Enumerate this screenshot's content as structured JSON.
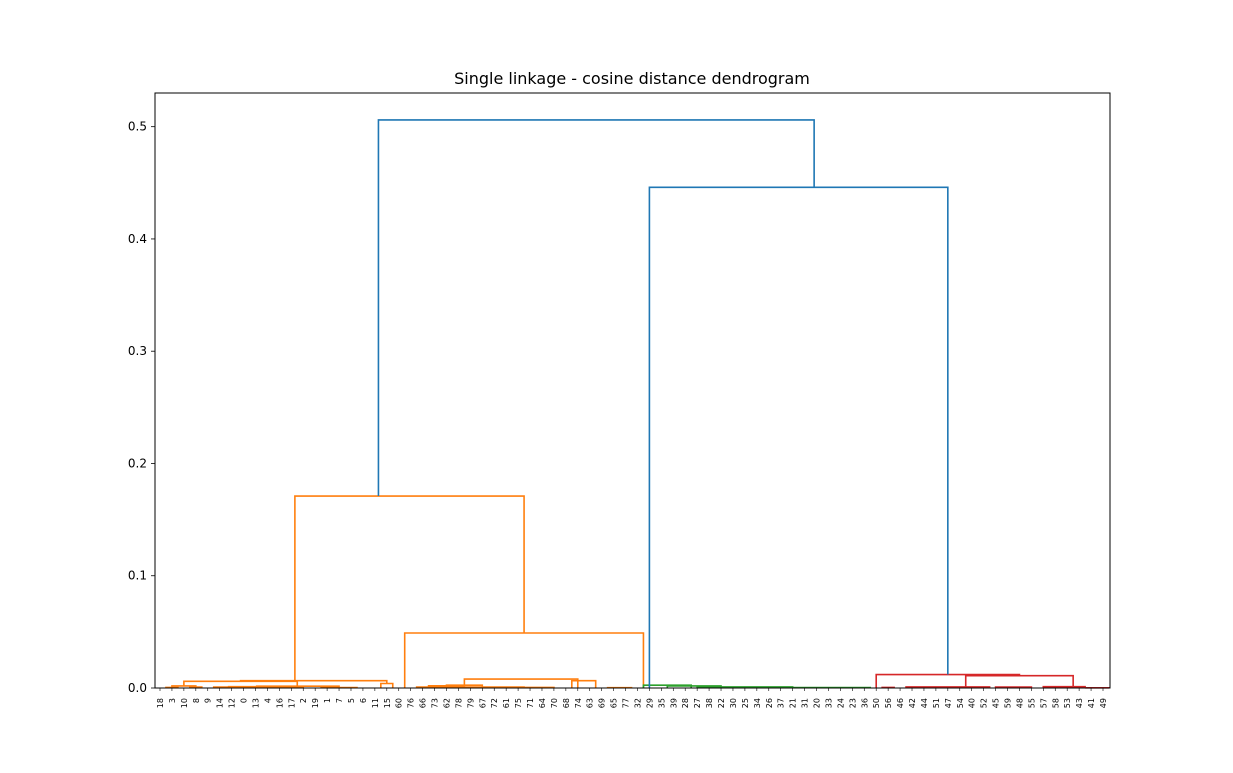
{
  "chart_data": {
    "type": "dendrogram",
    "title": "Single linkage - cosine distance dendrogram",
    "xlabel": "",
    "ylabel": "",
    "ylim": [
      0,
      0.53
    ],
    "yticks": [
      "0.0",
      "0.1",
      "0.2",
      "0.3",
      "0.4",
      "0.5"
    ],
    "ytick_values": [
      0.0,
      0.1,
      0.2,
      0.3,
      0.4,
      0.5
    ],
    "leaf_labels": [
      "18",
      "3",
      "10",
      "8",
      "9",
      "14",
      "12",
      "0",
      "13",
      "4",
      "16",
      "17",
      "2",
      "19",
      "1",
      "7",
      "5",
      "6",
      "11",
      "15",
      "60",
      "76",
      "66",
      "73",
      "62",
      "78",
      "79",
      "67",
      "72",
      "61",
      "75",
      "71",
      "64",
      "70",
      "68",
      "74",
      "63",
      "69",
      "65",
      "77",
      "32",
      "29",
      "35",
      "39",
      "28",
      "27",
      "38",
      "22",
      "30",
      "25",
      "34",
      "26",
      "37",
      "21",
      "31",
      "20",
      "33",
      "24",
      "23",
      "36",
      "50",
      "56",
      "46",
      "42",
      "44",
      "51",
      "47",
      "54",
      "40",
      "52",
      "45",
      "59",
      "48",
      "55",
      "57",
      "58",
      "53",
      "43",
      "41",
      "49"
    ],
    "colors": {
      "above_threshold": "#1f77b4",
      "cluster_1": "#ff7f0e",
      "cluster_2": "#2ca02c",
      "cluster_3": "#d62728"
    },
    "links": [
      {
        "color": "cluster_1",
        "lx": 0.5,
        "ly": 0,
        "rx": 1.5,
        "ry": 0,
        "h": 0.0005
      },
      {
        "color": "cluster_1",
        "lx": 2.5,
        "ly": 0,
        "rx": 3.5,
        "ry": 0,
        "h": 0.0008
      },
      {
        "color": "cluster_1",
        "lx": 1.0,
        "ly": 0.0005,
        "rx": 3.0,
        "ry": 0.0008,
        "h": 0.0018
      },
      {
        "color": "cluster_1",
        "lx": 4.5,
        "ly": 0,
        "rx": 7.0,
        "ry": 0,
        "h": 0.0009
      },
      {
        "color": "cluster_1",
        "lx": 9.0,
        "ly": 0,
        "rx": 12.0,
        "ry": 0,
        "h": 0.0005
      },
      {
        "color": "cluster_1",
        "lx": 5.75,
        "ly": 0.0009,
        "rx": 10.5,
        "ry": 0.0005,
        "h": 0.0012
      },
      {
        "color": "cluster_1",
        "lx": 13.5,
        "ly": 0,
        "rx": 16.5,
        "ry": 0,
        "h": 0.0004
      },
      {
        "color": "cluster_1",
        "lx": 8.1,
        "ly": 0.0012,
        "rx": 15.0,
        "ry": 0.0004,
        "h": 0.0016
      },
      {
        "color": "cluster_1",
        "lx": 2.0,
        "ly": 0.0018,
        "rx": 11.5,
        "ry": 0.0016,
        "h": 0.006
      },
      {
        "color": "cluster_1",
        "lx": 18.5,
        "ly": 0,
        "rx": 19.5,
        "ry": 0,
        "h": 0.004
      },
      {
        "color": "cluster_1",
        "lx": 6.75,
        "ly": 0.006,
        "rx": 19.0,
        "ry": 0.004,
        "h": 0.0065
      },
      {
        "color": "cluster_1",
        "lx": 22.5,
        "ly": 0,
        "rx": 25.5,
        "ry": 0,
        "h": 0.002
      },
      {
        "color": "cluster_1",
        "lx": 24.0,
        "ly": 0.002,
        "rx": 27.0,
        "ry": 0,
        "h": 0.0025
      },
      {
        "color": "cluster_1",
        "lx": 28.0,
        "ly": 0,
        "rx": 33.0,
        "ry": 0,
        "h": 0.0005
      },
      {
        "color": "cluster_1",
        "lx": 21.5,
        "ly": 0,
        "rx": 30.5,
        "ry": 0.0005,
        "h": 0.0008
      },
      {
        "color": "cluster_1",
        "lx": 25.5,
        "ly": 0.0025,
        "rx": 35.0,
        "ry": 0,
        "h": 0.008
      },
      {
        "color": "cluster_1",
        "lx": 34.5,
        "ly": 0,
        "rx": 36.5,
        "ry": 0,
        "h": 0.0065
      },
      {
        "color": "cluster_1",
        "lx": 37.5,
        "ly": 0,
        "rx": 39.5,
        "ry": 0,
        "h": 0.0003
      },
      {
        "color": "cluster_1",
        "lx": 20.5,
        "ly": 0,
        "rx": 40.5,
        "ry": 0,
        "h": 0.049
      },
      {
        "color": "cluster_1",
        "lx": 11.3,
        "ly": 0.0065,
        "rx": 30.5,
        "ry": 0.049,
        "h": 0.171
      },
      {
        "color": "cluster_2",
        "lx": 40.5,
        "ly": 0,
        "rx": 44.5,
        "ry": 0,
        "h": 0.0025
      },
      {
        "color": "cluster_2",
        "lx": 42.5,
        "ly": 0,
        "rx": 47.0,
        "ry": 0,
        "h": 0.0018
      },
      {
        "color": "cluster_2",
        "lx": 45.0,
        "ly": 0,
        "rx": 53.0,
        "ry": 0,
        "h": 0.001
      },
      {
        "color": "cluster_2",
        "lx": 53.0,
        "ly": 0,
        "rx": 59.5,
        "ry": 0,
        "h": 0.0004
      },
      {
        "color": "cluster_3",
        "lx": 60.5,
        "ly": 0,
        "rx": 61.5,
        "ry": 0,
        "h": 0.0005
      },
      {
        "color": "cluster_3",
        "lx": 62.5,
        "ly": 0,
        "rx": 69.5,
        "ry": 0,
        "h": 0.001
      },
      {
        "color": "cluster_3",
        "lx": 70.0,
        "ly": 0,
        "rx": 73.0,
        "ry": 0,
        "h": 0.0008
      },
      {
        "color": "cluster_3",
        "lx": 74.0,
        "ly": 0,
        "rx": 77.5,
        "ry": 0,
        "h": 0.0012
      },
      {
        "color": "cluster_3",
        "lx": 77.5,
        "ly": 0,
        "rx": 79.5,
        "ry": 0,
        "h": 0.0002
      },
      {
        "color": "cluster_3",
        "lx": 67.5,
        "ly": 0.001,
        "rx": 76.5,
        "ry": 0.0012,
        "h": 0.011
      },
      {
        "color": "cluster_3",
        "lx": 60.0,
        "ly": 0.0005,
        "rx": 72.0,
        "ry": 0.011,
        "h": 0.012
      },
      {
        "color": "above_threshold",
        "lx": 41.0,
        "ly": 0,
        "rx": 66.0,
        "ry": 0.012,
        "h": 0.446
      },
      {
        "color": "above_threshold",
        "lx": 18.3,
        "ly": 0.171,
        "rx": 54.8,
        "ry": 0.446,
        "h": 0.506
      }
    ]
  }
}
